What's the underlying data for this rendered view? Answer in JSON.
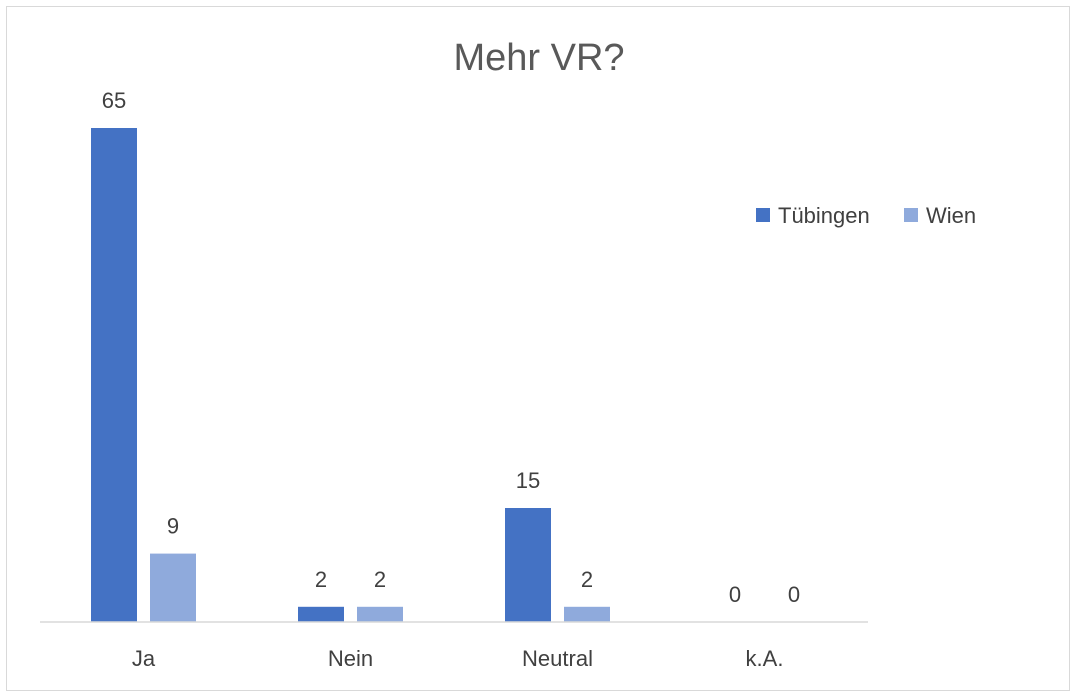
{
  "chart_data": {
    "type": "bar",
    "title": "Mehr VR?",
    "categories": [
      "Ja",
      "Nein",
      "Neutral",
      "k.A."
    ],
    "series": [
      {
        "name": "Tübingen",
        "values": [
          65,
          2,
          15,
          0
        ],
        "color": "#4472c4"
      },
      {
        "name": "Wien",
        "values": [
          9,
          2,
          2,
          0
        ],
        "color": "#8faadc"
      }
    ],
    "ylim": [
      0,
      70
    ],
    "grid": false,
    "legend": "right",
    "data_labels": true
  }
}
